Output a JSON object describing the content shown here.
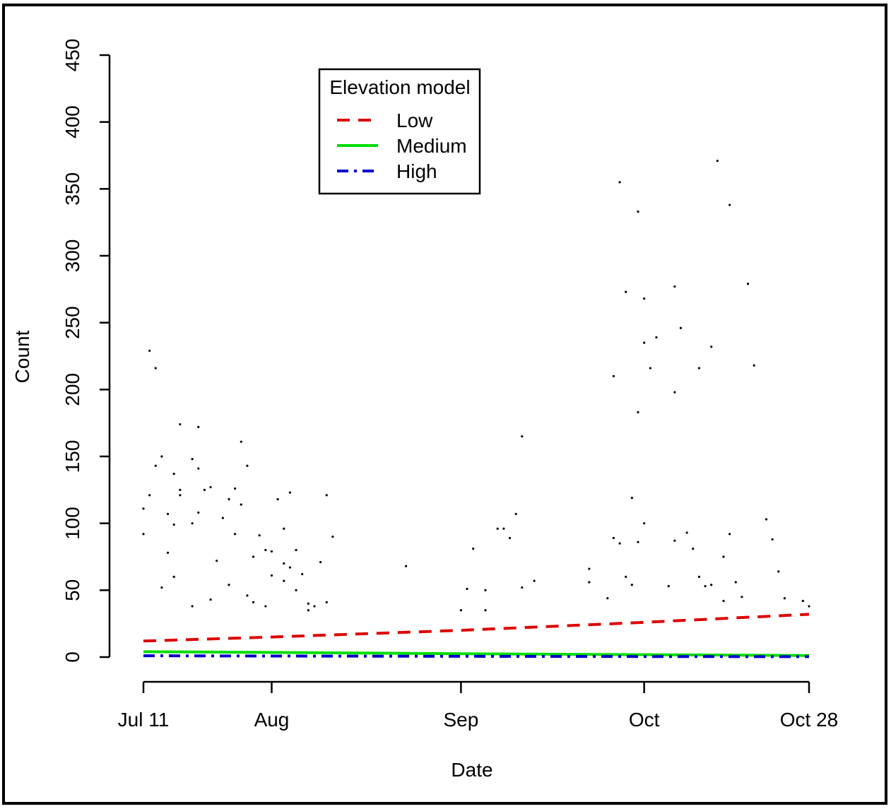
{
  "chart_data": {
    "type": "scatter",
    "title": "",
    "xlabel": "Date",
    "ylabel": "Count",
    "x_axis": {
      "kind": "date",
      "range": [
        "2012-07-11",
        "2012-10-28"
      ],
      "ticks": [
        {
          "date": "2012-07-11",
          "label": "Jul 11"
        },
        {
          "date": "2012-08-01",
          "label": "Aug"
        },
        {
          "date": "2012-09-01",
          "label": "Sep"
        },
        {
          "date": "2012-10-01",
          "label": "Oct"
        },
        {
          "date": "2012-10-28",
          "label": "Oct 28"
        }
      ]
    },
    "y_axis": {
      "range": [
        0,
        450
      ],
      "ticks": [
        0,
        50,
        100,
        150,
        200,
        250,
        300,
        350,
        400,
        450
      ],
      "tick_labels": [
        "0",
        "50",
        "100",
        "150",
        "200",
        "250",
        "300",
        "350",
        "400",
        "450"
      ]
    },
    "grid": false,
    "legend": {
      "title": "Elevation model",
      "placement": "top-left",
      "entries": [
        {
          "label": "Low",
          "color": "#dd0000",
          "style": "dashed"
        },
        {
          "label": "Medium",
          "color": "#00dd00",
          "style": "solid"
        },
        {
          "label": "High",
          "color": "#0000cc",
          "style": "dash-dot"
        }
      ]
    },
    "series": [
      {
        "name": "Low",
        "kind": "line",
        "points": [
          [
            "2012-07-11",
            12
          ],
          [
            "2012-08-01",
            15
          ],
          [
            "2012-09-01",
            20
          ],
          [
            "2012-10-01",
            26
          ],
          [
            "2012-10-28",
            32
          ]
        ]
      },
      {
        "name": "Medium",
        "kind": "line",
        "points": [
          [
            "2012-07-11",
            4
          ],
          [
            "2012-08-01",
            3.5
          ],
          [
            "2012-09-01",
            2.5
          ],
          [
            "2012-10-01",
            1.8
          ],
          [
            "2012-10-28",
            1.2
          ]
        ]
      },
      {
        "name": "High",
        "kind": "line",
        "points": [
          [
            "2012-07-11",
            1
          ],
          [
            "2012-08-01",
            0.8
          ],
          [
            "2012-09-01",
            0.6
          ],
          [
            "2012-10-01",
            0.4
          ],
          [
            "2012-10-28",
            0.3
          ]
        ]
      },
      {
        "kind": "points",
        "points": [
          [
            "2012-07-11",
            111
          ],
          [
            "2012-07-11",
            92
          ],
          [
            "2012-07-12",
            229
          ],
          [
            "2012-07-12",
            121
          ],
          [
            "2012-07-13",
            216
          ],
          [
            "2012-07-13",
            143
          ],
          [
            "2012-07-14",
            52
          ],
          [
            "2012-07-14",
            150
          ],
          [
            "2012-07-15",
            107
          ],
          [
            "2012-07-15",
            78
          ],
          [
            "2012-07-16",
            60
          ],
          [
            "2012-07-16",
            137
          ],
          [
            "2012-07-16",
            99
          ],
          [
            "2012-07-17",
            174
          ],
          [
            "2012-07-17",
            125
          ],
          [
            "2012-07-17",
            121
          ],
          [
            "2012-07-19",
            148
          ],
          [
            "2012-07-19",
            100
          ],
          [
            "2012-07-19",
            38
          ],
          [
            "2012-07-20",
            172
          ],
          [
            "2012-07-20",
            141
          ],
          [
            "2012-07-20",
            108
          ],
          [
            "2012-07-21",
            125
          ],
          [
            "2012-07-22",
            43
          ],
          [
            "2012-07-22",
            127
          ],
          [
            "2012-07-23",
            72
          ],
          [
            "2012-07-24",
            104
          ],
          [
            "2012-07-25",
            54
          ],
          [
            "2012-07-25",
            118
          ],
          [
            "2012-07-26",
            126
          ],
          [
            "2012-07-26",
            92
          ],
          [
            "2012-07-27",
            161
          ],
          [
            "2012-07-27",
            114
          ],
          [
            "2012-07-28",
            143
          ],
          [
            "2012-07-28",
            46
          ],
          [
            "2012-07-29",
            41
          ],
          [
            "2012-07-29",
            75
          ],
          [
            "2012-07-30",
            91
          ],
          [
            "2012-07-31",
            80
          ],
          [
            "2012-07-31",
            38
          ],
          [
            "2012-08-01",
            61
          ],
          [
            "2012-08-01",
            79
          ],
          [
            "2012-08-02",
            118
          ],
          [
            "2012-08-03",
            57
          ],
          [
            "2012-08-03",
            96
          ],
          [
            "2012-08-03",
            70
          ],
          [
            "2012-08-04",
            123
          ],
          [
            "2012-08-04",
            67
          ],
          [
            "2012-08-05",
            80
          ],
          [
            "2012-08-05",
            50
          ],
          [
            "2012-08-06",
            62
          ],
          [
            "2012-08-07",
            40
          ],
          [
            "2012-08-07",
            35
          ],
          [
            "2012-08-08",
            38
          ],
          [
            "2012-08-09",
            71
          ],
          [
            "2012-08-10",
            41
          ],
          [
            "2012-08-10",
            121
          ],
          [
            "2012-08-11",
            90
          ],
          [
            "2012-08-23",
            68
          ],
          [
            "2012-09-01",
            35
          ],
          [
            "2012-09-02",
            51
          ],
          [
            "2012-09-03",
            81
          ],
          [
            "2012-09-05",
            50
          ],
          [
            "2012-09-05",
            35
          ],
          [
            "2012-09-07",
            96
          ],
          [
            "2012-09-08",
            96
          ],
          [
            "2012-09-09",
            89
          ],
          [
            "2012-09-10",
            107
          ],
          [
            "2012-09-11",
            165
          ],
          [
            "2012-09-11",
            52
          ],
          [
            "2012-09-13",
            57
          ],
          [
            "2012-09-22",
            66
          ],
          [
            "2012-09-22",
            56
          ],
          [
            "2012-09-25",
            44
          ],
          [
            "2012-09-26",
            89
          ],
          [
            "2012-09-26",
            210
          ],
          [
            "2012-09-27",
            355
          ],
          [
            "2012-09-27",
            85
          ],
          [
            "2012-09-28",
            273
          ],
          [
            "2012-09-28",
            60
          ],
          [
            "2012-09-29",
            119
          ],
          [
            "2012-09-29",
            54
          ],
          [
            "2012-09-30",
            333
          ],
          [
            "2012-09-30",
            183
          ],
          [
            "2012-09-30",
            86
          ],
          [
            "2012-10-01",
            268
          ],
          [
            "2012-10-01",
            235
          ],
          [
            "2012-10-01",
            100
          ],
          [
            "2012-10-02",
            216
          ],
          [
            "2012-10-03",
            239
          ],
          [
            "2012-10-05",
            53
          ],
          [
            "2012-10-06",
            277
          ],
          [
            "2012-10-06",
            198
          ],
          [
            "2012-10-06",
            87
          ],
          [
            "2012-10-07",
            246
          ],
          [
            "2012-10-08",
            93
          ],
          [
            "2012-10-09",
            81
          ],
          [
            "2012-10-10",
            216
          ],
          [
            "2012-10-10",
            60
          ],
          [
            "2012-10-11",
            53
          ],
          [
            "2012-10-12",
            232
          ],
          [
            "2012-10-12",
            54
          ],
          [
            "2012-10-13",
            371
          ],
          [
            "2012-10-14",
            75
          ],
          [
            "2012-10-14",
            42
          ],
          [
            "2012-10-15",
            338
          ],
          [
            "2012-10-15",
            92
          ],
          [
            "2012-10-16",
            56
          ],
          [
            "2012-10-17",
            45
          ],
          [
            "2012-10-18",
            279
          ],
          [
            "2012-10-19",
            218
          ],
          [
            "2012-10-21",
            103
          ],
          [
            "2012-10-22",
            88
          ],
          [
            "2012-10-23",
            64
          ],
          [
            "2012-10-24",
            44
          ],
          [
            "2012-10-27",
            42
          ],
          [
            "2012-10-28",
            38
          ]
        ]
      }
    ]
  },
  "colors": {
    "low": "#dd0000",
    "medium": "#00dd00",
    "high": "#0000cc",
    "points": "#000000"
  }
}
